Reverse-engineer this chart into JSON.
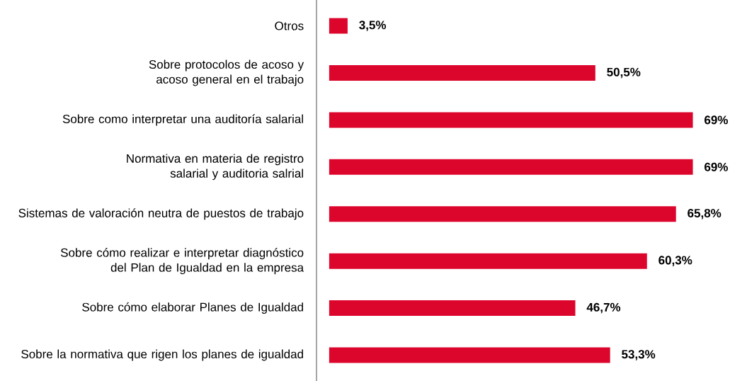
{
  "chart_data": {
    "type": "bar",
    "orientation": "horizontal",
    "color": "#dc062d",
    "categories": [
      "Otros",
      "Sobre protocolos de acoso y acoso general en el trabajo",
      "Sobre como interpretar una auditoría salarial",
      "Normativa en materia de registro salarial y auditoria salrial",
      "Sistemas de valoración neutra de puestos de trabajo",
      "Sobre cómo realizar e interpretar diagnóstico del Plan de Igualdad en la empresa",
      "Sobre cómo elaborar Planes de Igualdad",
      "Sobre la normativa que rigen los planes de igualdad"
    ],
    "values": [
      3.5,
      50.5,
      69,
      69,
      65.8,
      60.3,
      46.7,
      53.3
    ],
    "value_labels": [
      "3,5%",
      "50,5%",
      "69%",
      "69%",
      "65,8%",
      "60,3%",
      "46,7%",
      "53,3%"
    ]
  }
}
